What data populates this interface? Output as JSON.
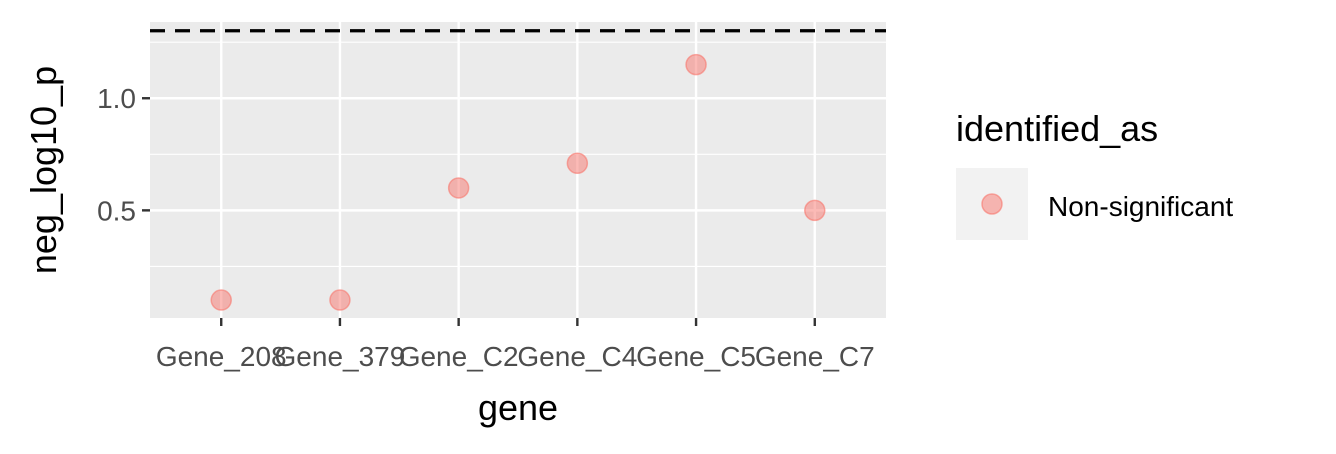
{
  "chart_data": {
    "type": "scatter",
    "xlabel": "gene",
    "ylabel": "neg_log10_p",
    "categories": [
      "Gene_208",
      "Gene_379",
      "Gene_C2",
      "Gene_C4",
      "Gene_C5",
      "Gene_C7"
    ],
    "series": [
      {
        "name": "Non-significant",
        "color": "#F8766D",
        "points": [
          {
            "x": "Gene_208",
            "y": 0.1
          },
          {
            "x": "Gene_379",
            "y": 0.1
          },
          {
            "x": "Gene_C2",
            "y": 0.6
          },
          {
            "x": "Gene_C4",
            "y": 0.71
          },
          {
            "x": "Gene_C5",
            "y": 1.15
          },
          {
            "x": "Gene_C7",
            "y": 0.5
          }
        ]
      }
    ],
    "ylim": [
      0.02,
      1.34
    ],
    "yticks": [
      0.5,
      1.0
    ],
    "ytick_labels": [
      "0.5",
      "1.0"
    ],
    "threshold_line": {
      "y": 1.301,
      "style": "dashed",
      "color": "#000000"
    },
    "grid": true,
    "panel_color": "#EBEBEB",
    "legend": {
      "title": "identified_as",
      "position": "right",
      "entries": [
        "Non-significant"
      ]
    }
  }
}
